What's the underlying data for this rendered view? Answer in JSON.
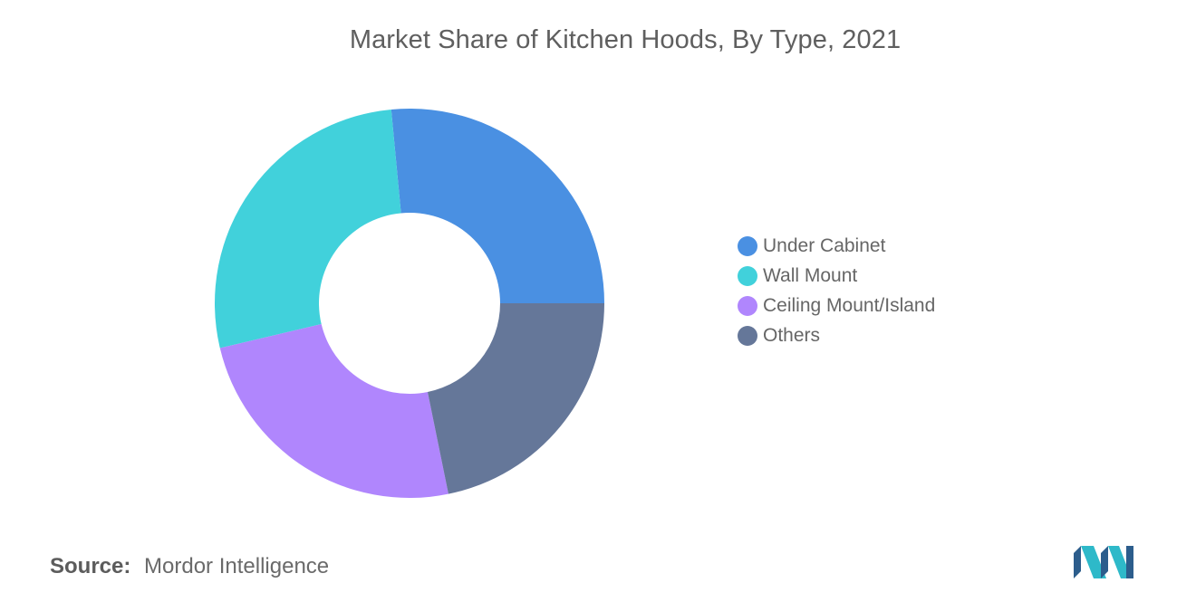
{
  "chart_data": {
    "type": "pie",
    "title": "Market Share of Kitchen Hoods, By Type, 2021",
    "categories": [
      "Under Cabinet",
      "Wall Mount",
      "Ceiling Mount/Island",
      "Others"
    ],
    "values": [
      26.5,
      27.2,
      24.5,
      21.8
    ],
    "colors": [
      "#4a90e2",
      "#41d1db",
      "#b086fd",
      "#657799"
    ],
    "donut": true,
    "legend_position": "right"
  },
  "source": {
    "label": "Source:",
    "value": "Mordor Intelligence"
  },
  "logo": {
    "icon": "mordor-intelligence-logo",
    "colors": [
      "#2c5d8c",
      "#2eb9c9"
    ]
  }
}
